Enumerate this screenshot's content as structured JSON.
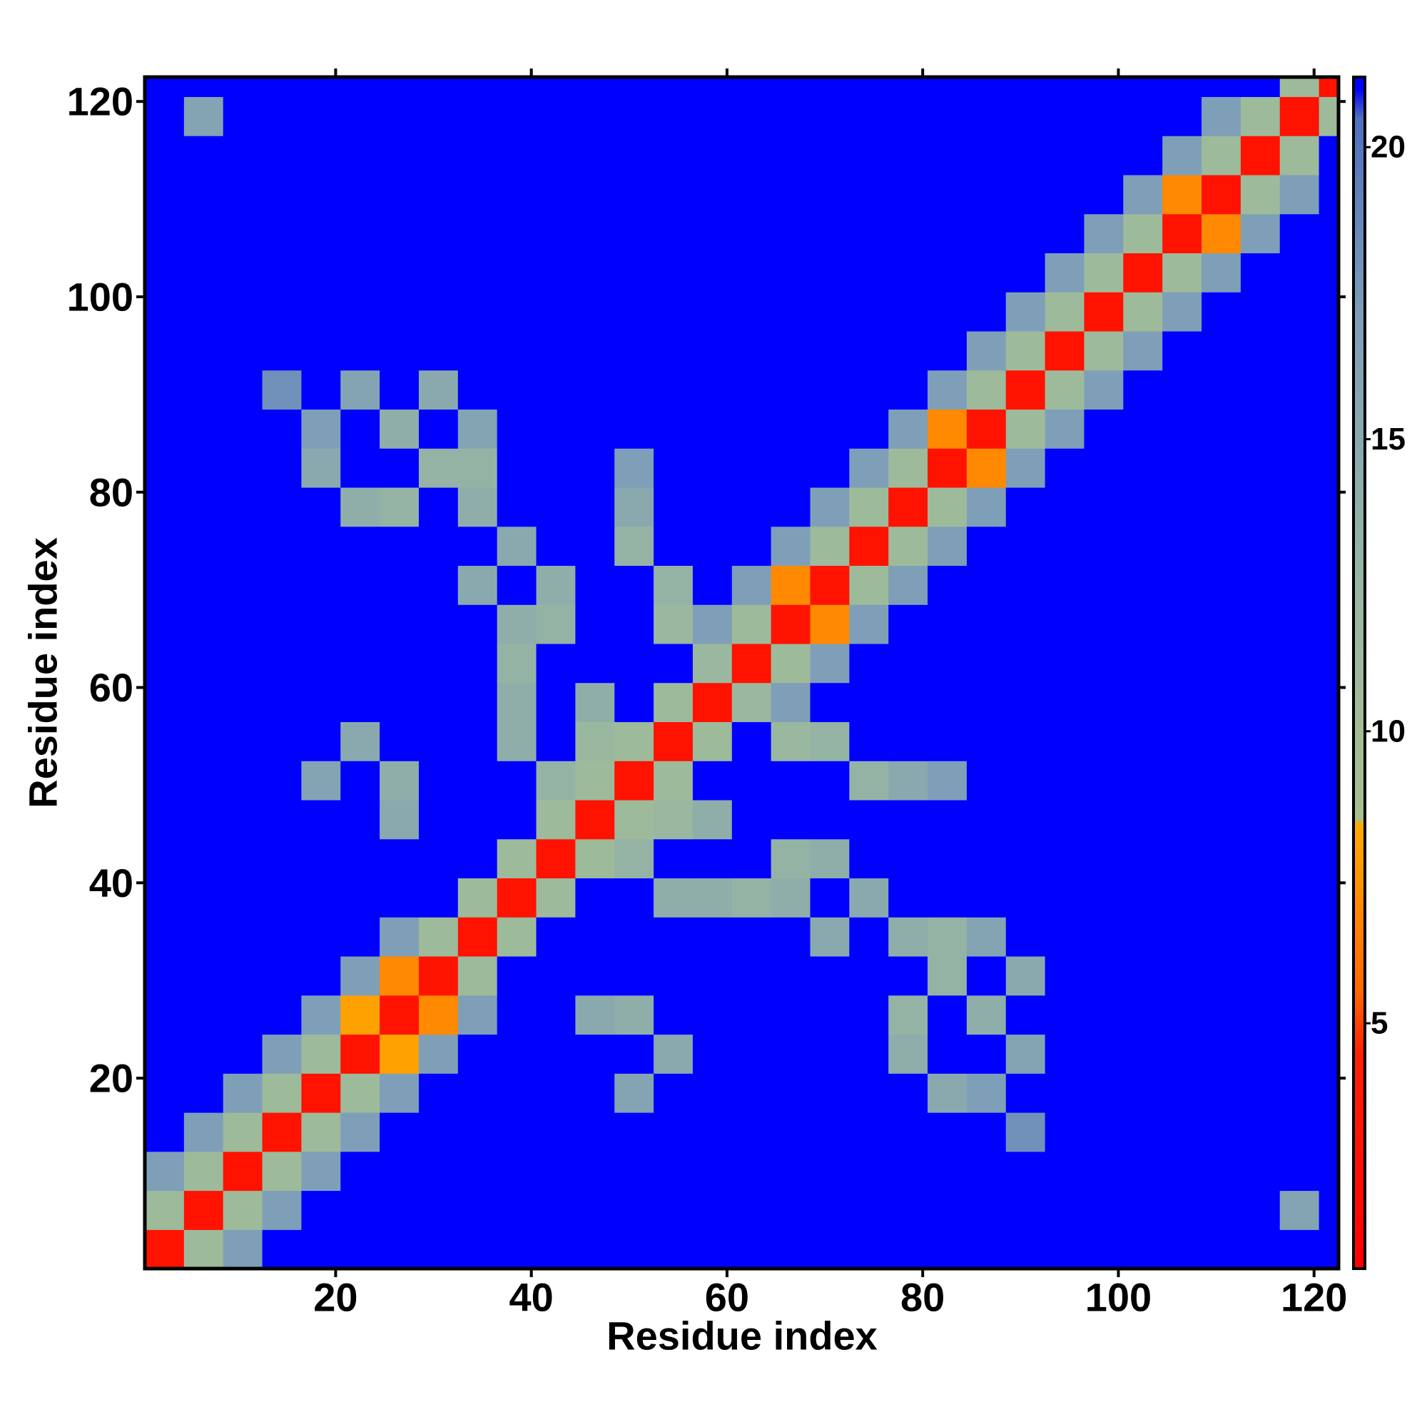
{
  "chart_data": {
    "type": "heatmap",
    "x_label": "Residue index",
    "y_label": "Residue index",
    "x": [
      1,
      5,
      9,
      13,
      17,
      21,
      25,
      29,
      33,
      37,
      41,
      45,
      49,
      53,
      57,
      61,
      65,
      69,
      73,
      77,
      81,
      85,
      89,
      93,
      97,
      101,
      105,
      109,
      113,
      117,
      121
    ],
    "y": [
      1,
      5,
      9,
      13,
      17,
      21,
      25,
      29,
      33,
      37,
      41,
      45,
      49,
      53,
      57,
      61,
      65,
      69,
      73,
      77,
      81,
      85,
      89,
      93,
      97,
      101,
      105,
      109,
      113,
      117,
      121
    ],
    "xlim": [
      0.5,
      122.5
    ],
    "ylim": [
      0.5,
      122.5
    ],
    "xticks": [
      20,
      40,
      60,
      80,
      100,
      120
    ],
    "yticks": [
      20,
      40,
      60,
      80,
      100,
      120
    ],
    "zlim": [
      0.8,
      21.2
    ],
    "zticks": [
      5,
      10,
      15,
      20
    ],
    "colorscale": [
      [
        0.8,
        "#ff0000"
      ],
      [
        4.5,
        "#ff2000"
      ],
      [
        5.5,
        "#ff6600"
      ],
      [
        8.4,
        "#ffaa00"
      ],
      [
        8.5,
        "#a6c08e"
      ],
      [
        12,
        "#9ab8a0"
      ],
      [
        17,
        "#7f9fb8"
      ],
      [
        20.5,
        "#4f6fc0"
      ],
      [
        21,
        "#0000ff"
      ]
    ],
    "values": [
      [
        3,
        11,
        17,
        21,
        21,
        21,
        21,
        21,
        21,
        21,
        21,
        21,
        21,
        21,
        21,
        21,
        21,
        21,
        21,
        21,
        21,
        21,
        21,
        21,
        21,
        21,
        21,
        21,
        21,
        21,
        21
      ],
      [
        11,
        3,
        11,
        17,
        21,
        21,
        21,
        21,
        21,
        21,
        21,
        21,
        21,
        21,
        21,
        21,
        21,
        21,
        21,
        21,
        21,
        21,
        21,
        21,
        21,
        21,
        21,
        21,
        21,
        16,
        21
      ],
      [
        17,
        11,
        3,
        11,
        17,
        21,
        21,
        21,
        21,
        21,
        21,
        21,
        21,
        21,
        21,
        21,
        21,
        21,
        21,
        21,
        21,
        21,
        21,
        21,
        21,
        21,
        21,
        21,
        21,
        21,
        21
      ],
      [
        21,
        17,
        11,
        3,
        11,
        17,
        21,
        21,
        21,
        21,
        21,
        21,
        21,
        21,
        21,
        21,
        21,
        21,
        21,
        21,
        21,
        21,
        18,
        21,
        21,
        21,
        21,
        21,
        21,
        21,
        21
      ],
      [
        21,
        21,
        17,
        11,
        3,
        11,
        17,
        21,
        21,
        21,
        21,
        21,
        16,
        21,
        21,
        21,
        21,
        21,
        21,
        21,
        15,
        17,
        21,
        21,
        21,
        21,
        21,
        21,
        21,
        21,
        21
      ],
      [
        21,
        21,
        21,
        17,
        11,
        3,
        8,
        17,
        21,
        21,
        21,
        21,
        21,
        15,
        21,
        21,
        21,
        21,
        21,
        14,
        21,
        21,
        16,
        21,
        21,
        21,
        21,
        21,
        21,
        21,
        21
      ],
      [
        21,
        21,
        21,
        21,
        17,
        8,
        3,
        7,
        17,
        21,
        21,
        15,
        14,
        21,
        21,
        21,
        21,
        21,
        21,
        13,
        21,
        14,
        21,
        21,
        21,
        21,
        21,
        21,
        21,
        21,
        21
      ],
      [
        21,
        21,
        21,
        21,
        21,
        17,
        7,
        3,
        11,
        21,
        21,
        21,
        21,
        21,
        21,
        21,
        21,
        21,
        21,
        21,
        13,
        21,
        15,
        21,
        21,
        21,
        21,
        21,
        21,
        21,
        21
      ],
      [
        21,
        21,
        21,
        21,
        21,
        21,
        17,
        11,
        3,
        11,
        21,
        21,
        21,
        21,
        21,
        21,
        21,
        15,
        21,
        14,
        13,
        16,
        21,
        21,
        21,
        21,
        21,
        21,
        21,
        21,
        21
      ],
      [
        21,
        21,
        21,
        21,
        21,
        21,
        21,
        21,
        11,
        3,
        11,
        21,
        21,
        14,
        14,
        13,
        14,
        21,
        15,
        21,
        21,
        21,
        21,
        21,
        21,
        21,
        21,
        21,
        21,
        21,
        21
      ],
      [
        21,
        21,
        21,
        21,
        21,
        21,
        21,
        21,
        21,
        11,
        3,
        11,
        13,
        21,
        21,
        21,
        13,
        14,
        21,
        21,
        21,
        21,
        21,
        21,
        21,
        21,
        21,
        21,
        21,
        21,
        21
      ],
      [
        21,
        21,
        21,
        21,
        21,
        21,
        15,
        21,
        21,
        21,
        11,
        3,
        11,
        12,
        14,
        21,
        21,
        21,
        21,
        21,
        21,
        21,
        21,
        21,
        21,
        21,
        21,
        21,
        21,
        21,
        21
      ],
      [
        21,
        21,
        21,
        21,
        16,
        21,
        14,
        21,
        21,
        21,
        13,
        11,
        3,
        11,
        21,
        21,
        21,
        21,
        13,
        15,
        17,
        21,
        21,
        21,
        21,
        21,
        21,
        21,
        21,
        21,
        21
      ],
      [
        21,
        21,
        21,
        21,
        21,
        15,
        21,
        21,
        21,
        14,
        21,
        12,
        11,
        3,
        11,
        21,
        12,
        13,
        21,
        21,
        21,
        21,
        21,
        21,
        21,
        21,
        21,
        21,
        21,
        21,
        21
      ],
      [
        21,
        21,
        21,
        21,
        21,
        21,
        21,
        21,
        21,
        14,
        21,
        14,
        21,
        11,
        3,
        12,
        17,
        21,
        21,
        21,
        21,
        21,
        21,
        21,
        21,
        21,
        21,
        21,
        21,
        21,
        21
      ],
      [
        21,
        21,
        21,
        21,
        21,
        21,
        21,
        21,
        21,
        13,
        21,
        21,
        21,
        21,
        12,
        3,
        11,
        17,
        21,
        21,
        21,
        21,
        21,
        21,
        21,
        21,
        21,
        21,
        21,
        21,
        21
      ],
      [
        21,
        21,
        21,
        21,
        21,
        21,
        21,
        21,
        21,
        14,
        13,
        21,
        21,
        12,
        17,
        11,
        3,
        7,
        17,
        21,
        21,
        21,
        21,
        21,
        21,
        21,
        21,
        21,
        21,
        21,
        21
      ],
      [
        21,
        21,
        21,
        21,
        21,
        21,
        21,
        21,
        15,
        21,
        14,
        21,
        21,
        13,
        21,
        17,
        7,
        3,
        11,
        17,
        21,
        21,
        21,
        21,
        21,
        21,
        21,
        21,
        21,
        21,
        21
      ],
      [
        21,
        21,
        21,
        21,
        21,
        21,
        21,
        21,
        21,
        15,
        21,
        21,
        13,
        21,
        21,
        21,
        17,
        11,
        3,
        11,
        17,
        21,
        21,
        21,
        21,
        21,
        21,
        21,
        21,
        21,
        21
      ],
      [
        21,
        21,
        21,
        21,
        21,
        14,
        13,
        21,
        14,
        21,
        21,
        21,
        15,
        21,
        21,
        21,
        21,
        17,
        11,
        3,
        11,
        17,
        21,
        21,
        21,
        21,
        21,
        21,
        21,
        21,
        21
      ],
      [
        21,
        21,
        21,
        21,
        15,
        21,
        21,
        13,
        13,
        21,
        21,
        21,
        17,
        21,
        21,
        21,
        21,
        21,
        17,
        11,
        3,
        7,
        17,
        21,
        21,
        21,
        21,
        21,
        21,
        21,
        21
      ],
      [
        21,
        21,
        21,
        21,
        17,
        21,
        14,
        21,
        16,
        21,
        21,
        21,
        21,
        21,
        21,
        21,
        21,
        21,
        21,
        17,
        7,
        3,
        11,
        17,
        21,
        21,
        21,
        21,
        21,
        21,
        21
      ],
      [
        21,
        21,
        21,
        18,
        21,
        16,
        21,
        15,
        21,
        21,
        21,
        21,
        21,
        21,
        21,
        21,
        21,
        21,
        21,
        21,
        17,
        11,
        3,
        11,
        17,
        21,
        21,
        21,
        21,
        21,
        21
      ],
      [
        21,
        21,
        21,
        21,
        21,
        21,
        21,
        21,
        21,
        21,
        21,
        21,
        21,
        21,
        21,
        21,
        21,
        21,
        21,
        21,
        21,
        17,
        11,
        3,
        11,
        17,
        21,
        21,
        21,
        21,
        21
      ],
      [
        21,
        21,
        21,
        21,
        21,
        21,
        21,
        21,
        21,
        21,
        21,
        21,
        21,
        21,
        21,
        21,
        21,
        21,
        21,
        21,
        21,
        21,
        17,
        11,
        3,
        11,
        17,
        21,
        21,
        21,
        21
      ],
      [
        21,
        21,
        21,
        21,
        21,
        21,
        21,
        21,
        21,
        21,
        21,
        21,
        21,
        21,
        21,
        21,
        21,
        21,
        21,
        21,
        21,
        21,
        21,
        17,
        11,
        3,
        11,
        17,
        21,
        21,
        21
      ],
      [
        21,
        21,
        21,
        21,
        21,
        21,
        21,
        21,
        21,
        21,
        21,
        21,
        21,
        21,
        21,
        21,
        21,
        21,
        21,
        21,
        21,
        21,
        21,
        21,
        17,
        11,
        3,
        7,
        17,
        21,
        21
      ],
      [
        21,
        21,
        21,
        21,
        21,
        21,
        21,
        21,
        21,
        21,
        21,
        21,
        21,
        21,
        21,
        21,
        21,
        21,
        21,
        21,
        21,
        21,
        21,
        21,
        21,
        17,
        7,
        3,
        11,
        17,
        21
      ],
      [
        21,
        21,
        21,
        21,
        21,
        21,
        21,
        21,
        21,
        21,
        21,
        21,
        21,
        21,
        21,
        21,
        21,
        21,
        21,
        21,
        21,
        21,
        21,
        21,
        21,
        21,
        17,
        11,
        3,
        11,
        21
      ],
      [
        21,
        16,
        21,
        21,
        21,
        21,
        21,
        21,
        21,
        21,
        21,
        21,
        21,
        21,
        21,
        21,
        21,
        21,
        21,
        21,
        21,
        21,
        21,
        21,
        21,
        21,
        21,
        17,
        11,
        3,
        11
      ],
      [
        21,
        21,
        21,
        21,
        21,
        21,
        21,
        21,
        21,
        21,
        21,
        21,
        21,
        21,
        21,
        21,
        21,
        21,
        21,
        21,
        21,
        21,
        21,
        21,
        21,
        21,
        21,
        21,
        21,
        11,
        3
      ]
    ]
  }
}
